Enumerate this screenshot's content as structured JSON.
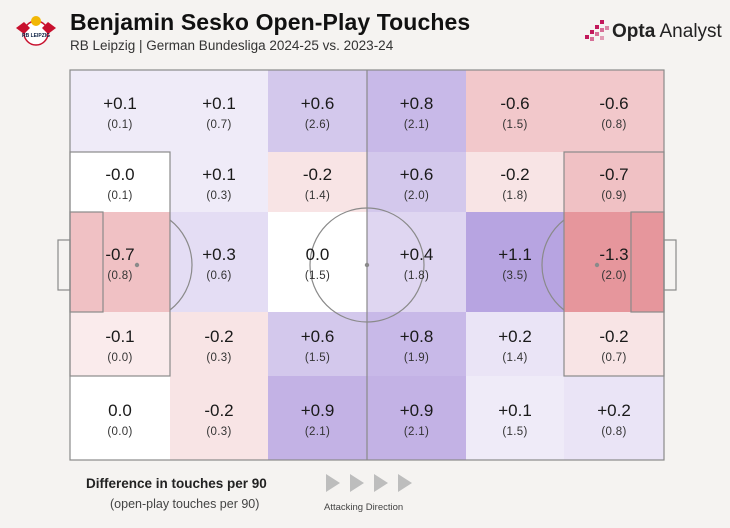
{
  "header": {
    "title": "Benjamin Sesko Open-Play Touches",
    "subtitle": "RB Leipzig | German Bundesliga 2024-25 vs. 2023-24",
    "brand_bold": "Opta",
    "brand_light": " Analyst",
    "club_logo": "rb-leipzig-crest-icon",
    "club_logo_text": "RB LEIPZIG"
  },
  "colors": {
    "background": "#f5f3f1",
    "positive": "#9a7fd4",
    "negative": "#e07f86",
    "neutral": "#ffffff",
    "lines": "#8a8a8a",
    "brand_accent": "#c2185b"
  },
  "chart_data": {
    "type": "heatmap",
    "grid_columns": 6,
    "grid_rows": 5,
    "attacking_direction": "left-to-right",
    "cells": [
      [
        {
          "diff": "+0.1",
          "touches": "(0.1)"
        },
        {
          "diff": "+0.1",
          "touches": "(0.7)"
        },
        {
          "diff": "+0.6",
          "touches": "(2.6)"
        },
        {
          "diff": "+0.8",
          "touches": "(2.1)"
        },
        {
          "diff": "-0.6",
          "touches": "(1.5)"
        },
        {
          "diff": "-0.6",
          "touches": "(0.8)"
        }
      ],
      [
        {
          "diff": "-0.0",
          "touches": "(0.1)"
        },
        {
          "diff": "+0.1",
          "touches": "(0.3)"
        },
        {
          "diff": "-0.2",
          "touches": "(1.4)"
        },
        {
          "diff": "+0.6",
          "touches": "(2.0)"
        },
        {
          "diff": "-0.2",
          "touches": "(1.8)"
        },
        {
          "diff": "-0.7",
          "touches": "(0.9)"
        }
      ],
      [
        {
          "diff": "-0.7",
          "touches": "(0.8)"
        },
        {
          "diff": "+0.3",
          "touches": "(0.6)"
        },
        {
          "diff": "0.0",
          "touches": "(1.5)"
        },
        {
          "diff": "+0.4",
          "touches": "(1.8)"
        },
        {
          "diff": "+1.1",
          "touches": "(3.5)"
        },
        {
          "diff": "-1.3",
          "touches": "(2.0)"
        }
      ],
      [
        {
          "diff": "-0.1",
          "touches": "(0.0)"
        },
        {
          "diff": "-0.2",
          "touches": "(0.3)"
        },
        {
          "diff": "+0.6",
          "touches": "(1.5)"
        },
        {
          "diff": "+0.8",
          "touches": "(1.9)"
        },
        {
          "diff": "+0.2",
          "touches": "(1.4)"
        },
        {
          "diff": "-0.2",
          "touches": "(0.7)"
        }
      ],
      [
        {
          "diff": "0.0",
          "touches": "(0.0)"
        },
        {
          "diff": "-0.2",
          "touches": "(0.3)"
        },
        {
          "diff": "+0.9",
          "touches": "(2.1)"
        },
        {
          "diff": "+0.9",
          "touches": "(2.1)"
        },
        {
          "diff": "+0.1",
          "touches": "(1.5)"
        },
        {
          "diff": "+0.2",
          "touches": "(0.8)"
        }
      ]
    ]
  },
  "legend": {
    "title": "Difference in touches per 90",
    "subtitle": "(open-play touches per 90)",
    "direction_label": "Attacking Direction",
    "arrow_icon": "play-triangle-icon"
  }
}
